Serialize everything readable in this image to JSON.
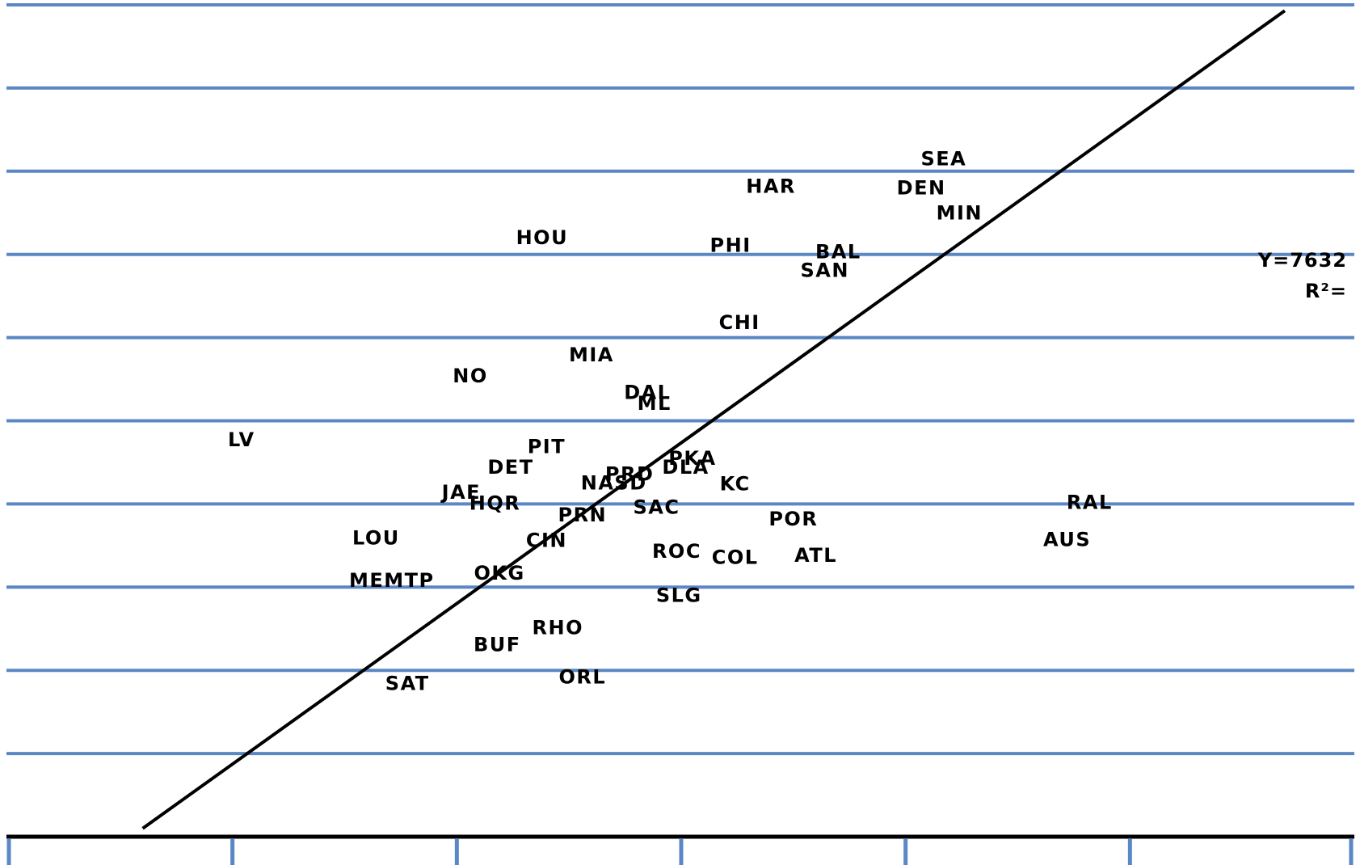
{
  "chart_data": {
    "type": "scatter",
    "colors": {
      "gridline": "#5b87c4",
      "axis": "#000000",
      "trendline": "#000000",
      "label": "#000000"
    },
    "xlim": [
      0,
      6
    ],
    "ylim": [
      0,
      10
    ],
    "grid": true,
    "points": [
      {
        "label": "SEA",
        "x": 4.17,
        "y": 8.15
      },
      {
        "label": "HAR",
        "x": 3.4,
        "y": 7.82
      },
      {
        "label": "DEN",
        "x": 4.07,
        "y": 7.8
      },
      {
        "label": "MIN",
        "x": 4.24,
        "y": 7.5
      },
      {
        "label": "HOU",
        "x": 2.38,
        "y": 7.2
      },
      {
        "label": "PHI",
        "x": 3.22,
        "y": 7.11
      },
      {
        "label": "BAL",
        "x": 3.7,
        "y": 7.03
      },
      {
        "label": "SAN",
        "x": 3.64,
        "y": 6.81
      },
      {
        "label": "CHI",
        "x": 3.26,
        "y": 6.18
      },
      {
        "label": "MIA",
        "x": 2.6,
        "y": 5.79
      },
      {
        "label": "NO",
        "x": 2.06,
        "y": 5.54
      },
      {
        "label": "DAL",
        "x": 2.85,
        "y": 5.34
      },
      {
        "label": "ML",
        "x": 2.88,
        "y": 5.21
      },
      {
        "label": "LV",
        "x": 1.04,
        "y": 4.77
      },
      {
        "label": "PIT",
        "x": 2.4,
        "y": 4.69
      },
      {
        "label": "PKA",
        "x": 3.05,
        "y": 4.55
      },
      {
        "label": "DLA",
        "x": 3.02,
        "y": 4.44
      },
      {
        "label": "DET",
        "x": 2.24,
        "y": 4.44
      },
      {
        "label": "PRD",
        "x": 2.77,
        "y": 4.36
      },
      {
        "label": "NASD",
        "x": 2.7,
        "y": 4.25
      },
      {
        "label": "KC",
        "x": 3.24,
        "y": 4.24
      },
      {
        "label": "JAE",
        "x": 2.02,
        "y": 4.14
      },
      {
        "label": "HQR",
        "x": 2.17,
        "y": 4.01
      },
      {
        "label": "SAC",
        "x": 2.89,
        "y": 3.96
      },
      {
        "label": "RAL",
        "x": 4.82,
        "y": 4.02
      },
      {
        "label": "PRN",
        "x": 2.56,
        "y": 3.87
      },
      {
        "label": "POR",
        "x": 3.5,
        "y": 3.82
      },
      {
        "label": "LOU",
        "x": 1.64,
        "y": 3.59
      },
      {
        "label": "AUS",
        "x": 4.72,
        "y": 3.57
      },
      {
        "label": "CIN",
        "x": 2.4,
        "y": 3.56
      },
      {
        "label": "ROC",
        "x": 2.98,
        "y": 3.43
      },
      {
        "label": "COL",
        "x": 3.24,
        "y": 3.36
      },
      {
        "label": "ATL",
        "x": 3.6,
        "y": 3.38
      },
      {
        "label": "OKG",
        "x": 2.19,
        "y": 3.17
      },
      {
        "label": "MEMTP",
        "x": 1.71,
        "y": 3.08
      },
      {
        "label": "SLG",
        "x": 2.99,
        "y": 2.9
      },
      {
        "label": "RHO",
        "x": 2.45,
        "y": 2.51
      },
      {
        "label": "BUF",
        "x": 2.18,
        "y": 2.31
      },
      {
        "label": "ORL",
        "x": 2.56,
        "y": 1.92
      },
      {
        "label": "SAT",
        "x": 1.78,
        "y": 1.84
      }
    ],
    "trendline": {
      "x": [
        0.6,
        5.69
      ],
      "y": [
        0.1,
        9.93
      ]
    },
    "equation_lines": [
      "Y=7632",
      "R²="
    ]
  }
}
